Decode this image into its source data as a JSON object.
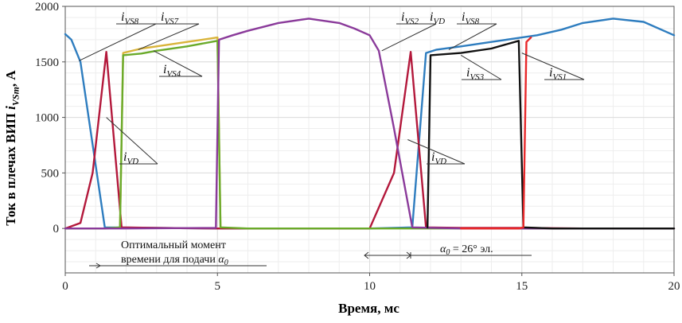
{
  "chart_data": {
    "type": "line",
    "xlabel": "Время, мс",
    "ylabel_prefix": "Ток в плечах ВИП ",
    "ylabel_var": "i",
    "ylabel_sub": "VSm",
    "ylabel_suffix": ", А",
    "xlim": [
      0,
      20
    ],
    "ylim": [
      -400,
      2000
    ],
    "x_ticks": [
      0,
      5,
      10,
      15,
      20
    ],
    "y_ticks": [
      0,
      500,
      1000,
      1500,
      2000
    ],
    "grid": true,
    "colors": {
      "blue": "#2e7dbf",
      "crimson": "#b3183b",
      "green": "#6aaa2a",
      "yellow": "#d9b43a",
      "purple": "#8a3a9a",
      "black": "#111111",
      "red": "#e8282a",
      "baseline": "#2a4d6e"
    },
    "series": [
      {
        "color": "blue",
        "x": [
          0,
          0.2,
          0.5,
          1.3,
          3,
          5,
          10,
          11.4,
          11.85,
          12.2,
          13,
          14,
          15,
          15.5,
          16.3,
          17,
          18,
          19,
          20
        ],
        "y": [
          1750,
          1700,
          1500,
          10,
          5,
          0,
          0,
          10,
          1580,
          1610,
          1640,
          1680,
          1720,
          1740,
          1790,
          1850,
          1890,
          1860,
          1740
        ]
      },
      {
        "color": "crimson",
        "x": [
          0,
          0.5,
          0.9,
          1.35,
          1.85,
          3,
          5,
          8,
          10,
          10.8,
          11.35,
          11.85,
          13,
          15,
          17,
          20
        ],
        "y": [
          0,
          50,
          500,
          1590,
          10,
          5,
          0,
          0,
          0,
          500,
          1590,
          10,
          5,
          5,
          0,
          0
        ]
      },
      {
        "color": "yellow",
        "x": [
          1.8,
          1.9,
          2.5,
          3,
          4,
          5,
          5.1
        ],
        "y": [
          10,
          1580,
          1620,
          1640,
          1680,
          1720,
          10
        ]
      },
      {
        "color": "green",
        "x": [
          0,
          1.3,
          1.8,
          1.9,
          2.5,
          3,
          4,
          5,
          5.1,
          6,
          8,
          10,
          15,
          20
        ],
        "y": [
          0,
          0,
          10,
          1560,
          1575,
          1600,
          1640,
          1690,
          10,
          0,
          0,
          0,
          0,
          0
        ]
      },
      {
        "color": "purple",
        "x": [
          0,
          2,
          4.95,
          5.05,
          5.5,
          6,
          7,
          8,
          9,
          9.5,
          10,
          10.3,
          10.8,
          11.4,
          13,
          20
        ],
        "y": [
          0,
          0,
          5,
          1700,
          1740,
          1780,
          1850,
          1890,
          1850,
          1800,
          1740,
          1600,
          900,
          10,
          0,
          0
        ]
      },
      {
        "color": "black",
        "x": [
          11.9,
          12,
          13,
          14,
          14.9,
          15.05,
          16,
          20
        ],
        "y": [
          10,
          1560,
          1580,
          1620,
          1690,
          10,
          0,
          0
        ]
      },
      {
        "color": "red",
        "x": [
          13,
          14.9,
          15.05,
          15.15,
          15.3
        ],
        "y": [
          0,
          0,
          10,
          1680,
          1720
        ]
      }
    ],
    "annotations": [
      {
        "var": "i",
        "sub": "VS8"
      },
      {
        "var": "i",
        "sub": "VS7"
      },
      {
        "var": "i",
        "sub": "VS4"
      },
      {
        "var": "i",
        "sub": "VD"
      },
      {
        "var": "i",
        "sub": "VS2"
      },
      {
        "var": "i",
        "sub": "VD"
      },
      {
        "var": "i",
        "sub": "VS8"
      },
      {
        "var": "i",
        "sub": "VS3"
      },
      {
        "var": "i",
        "sub": "VS1"
      },
      {
        "var": "i",
        "sub": "VD"
      }
    ],
    "note_optimal_line1": "Оптимальный момент",
    "note_optimal_line2": "времени для подачи ",
    "note_optimal_var": "α",
    "note_optimal_sub": "0",
    "note_alpha_var": "α",
    "note_alpha_sub": "0",
    "note_alpha_text": " = 26° эл."
  }
}
